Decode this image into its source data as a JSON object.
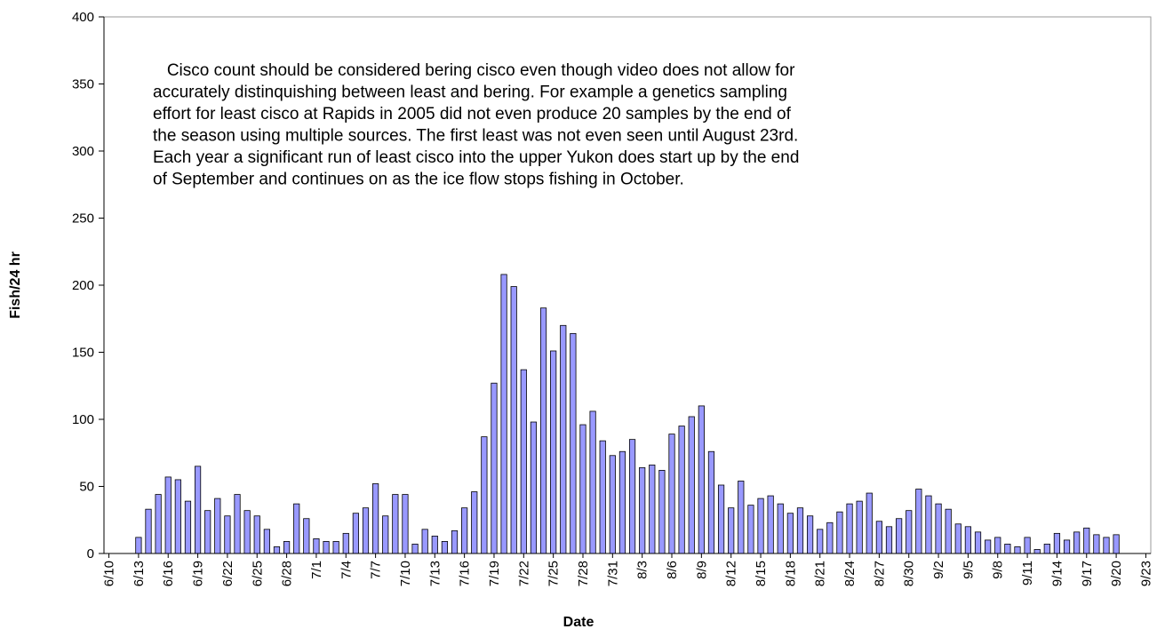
{
  "chart_data": {
    "type": "bar",
    "x_label": "Date",
    "y_label": "Fish/24 hr",
    "annotation": [
      "   Cisco count should be considered bering cisco even though video does not allow for",
      "accurately distinquishing between least and bering. For example a genetics sampling",
      "effort for least cisco at Rapids in 2005 did not even produce 20 samples by the end of",
      "the season using multiple sources. The first least was not even seen until August 23rd.",
      "Each year a significant run of least cisco into the upper Yukon does start up by the end",
      "of September and continues on as the ice flow stops fishing in October."
    ],
    "categories": [
      "6/10",
      null,
      null,
      "6/13",
      null,
      null,
      "6/16",
      null,
      null,
      "6/19",
      null,
      null,
      "6/22",
      null,
      null,
      "6/25",
      null,
      null,
      "6/28",
      null,
      null,
      "7/1",
      null,
      null,
      "7/4",
      null,
      null,
      "7/7",
      null,
      null,
      "7/10",
      null,
      null,
      "7/13",
      null,
      null,
      "7/16",
      null,
      null,
      "7/19",
      null,
      null,
      "7/22",
      null,
      null,
      "7/25",
      null,
      null,
      "7/28",
      null,
      null,
      "7/31",
      null,
      null,
      "8/3",
      null,
      null,
      "8/6",
      null,
      null,
      "8/9",
      null,
      null,
      "8/12",
      null,
      null,
      "8/15",
      null,
      null,
      "8/18",
      null,
      null,
      "8/21",
      null,
      null,
      "8/24",
      null,
      null,
      "8/27",
      null,
      null,
      "8/30",
      null,
      null,
      "9/2",
      null,
      null,
      "9/5",
      null,
      null,
      "9/8",
      null,
      null,
      "9/11",
      null,
      null,
      "9/14",
      null,
      null,
      "9/17",
      null,
      null,
      "9/20",
      null,
      null,
      "9/23"
    ],
    "values": [
      null,
      null,
      null,
      12,
      33,
      44,
      57,
      55,
      39,
      65,
      32,
      41,
      28,
      44,
      32,
      28,
      18,
      5,
      9,
      37,
      26,
      11,
      9,
      9,
      15,
      30,
      34,
      52,
      28,
      44,
      44,
      7,
      18,
      13,
      9,
      17,
      34,
      46,
      87,
      127,
      208,
      199,
      137,
      98,
      183,
      151,
      170,
      164,
      96,
      106,
      84,
      73,
      76,
      85,
      64,
      66,
      62,
      89,
      95,
      102,
      110,
      76,
      51,
      34,
      54,
      36,
      41,
      43,
      37,
      30,
      34,
      28,
      18,
      23,
      31,
      37,
      39,
      45,
      24,
      20,
      26,
      32,
      48,
      43,
      37,
      33,
      22,
      20,
      16,
      10,
      12,
      7,
      5,
      12,
      3,
      7,
      15,
      10,
      16,
      19,
      14,
      12,
      14,
      null,
      null,
      null
    ],
    "color": "#9999ff",
    "ylim": [
      0,
      400
    ],
    "yticks": [
      0,
      50,
      100,
      150,
      200,
      250,
      300,
      350,
      400
    ],
    "grid": false
  }
}
